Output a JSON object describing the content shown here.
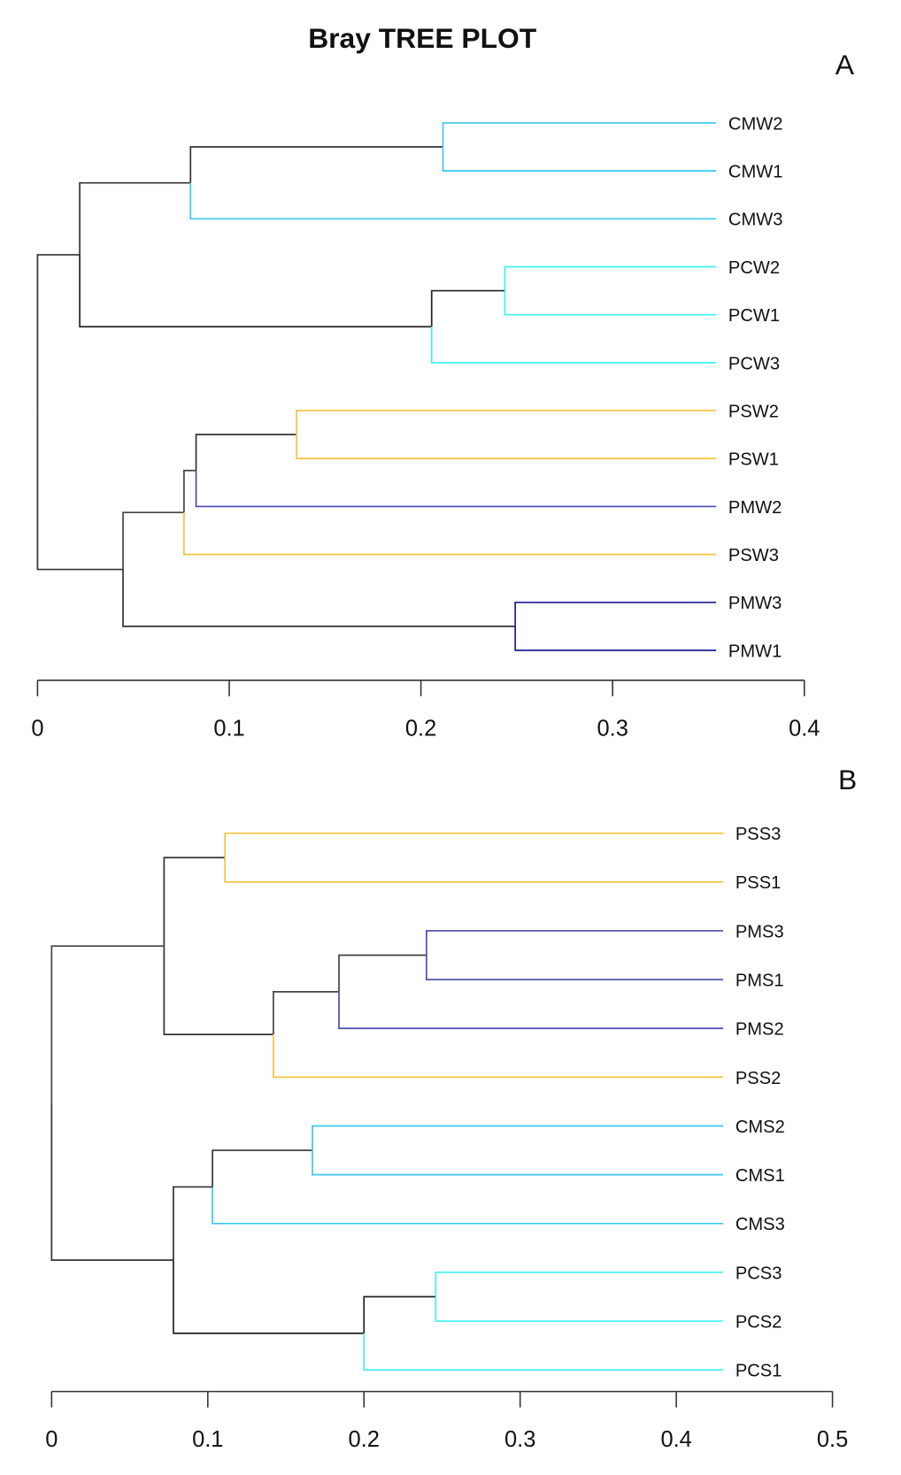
{
  "chart_data": [
    {
      "type": "dendrogram",
      "title": "Bray TREE PLOT",
      "panel": "A",
      "xlim": [
        0,
        0.4
      ],
      "x_ticks": [
        "0",
        "0.1",
        "0.2",
        "0.3",
        "0.4"
      ],
      "x_tick_values": [
        0,
        0.1,
        0.2,
        0.3,
        0.4
      ],
      "leaf_end": 0.354,
      "grid": false,
      "tree": {
        "height": 0,
        "children": [
          {
            "height": 0.022,
            "edge_color": "#333333",
            "children": [
              {
                "height": 0.0798,
                "edge_color": "#333333",
                "children": [
                  {
                    "height": 0.2115,
                    "edge_color": "#333333",
                    "children": [
                      {
                        "label": "CMW2",
                        "edge_color": "#3cc6f2"
                      },
                      {
                        "label": "CMW1",
                        "edge_color": "#3cc6f2"
                      }
                    ]
                  },
                  {
                    "label": "CMW3",
                    "edge_color": "#3cc6f2"
                  }
                ]
              },
              {
                "height": 0.2056,
                "edge_color": "#222222",
                "children": [
                  {
                    "height": 0.2438,
                    "edge_color": "#222222",
                    "children": [
                      {
                        "label": "PCW2",
                        "edge_color": "#3ff2f2"
                      },
                      {
                        "label": "PCW1",
                        "edge_color": "#3ff2f2"
                      }
                    ]
                  },
                  {
                    "label": "PCW3",
                    "edge_color": "#3ff2f2"
                  }
                ]
              }
            ]
          },
          {
            "height": 0.0446,
            "edge_color": "#333333",
            "children": [
              {
                "height": 0.0764,
                "edge_color": "#444444",
                "children": [
                  {
                    "height": 0.0827,
                    "edge_color": "#444444",
                    "children": [
                      {
                        "height": 0.1351,
                        "edge_color": "#333333",
                        "children": [
                          {
                            "label": "PSW2",
                            "edge_color": "#f7c23e"
                          },
                          {
                            "label": "PSW1",
                            "edge_color": "#f7c23e"
                          }
                        ]
                      },
                      {
                        "label": "PMW2",
                        "edge_color": "#4a4ab4"
                      }
                    ]
                  },
                  {
                    "label": "PSW3",
                    "edge_color": "#f7c23e"
                  }
                ]
              },
              {
                "height": 0.2492,
                "edge_color": "#333333",
                "children": [
                  {
                    "label": "PMW3",
                    "edge_color": "#1c1c96"
                  },
                  {
                    "label": "PMW1",
                    "edge_color": "#1c1c96"
                  }
                ]
              }
            ]
          }
        ]
      }
    },
    {
      "type": "dendrogram",
      "panel": "B",
      "xlim": [
        0,
        0.5
      ],
      "x_ticks": [
        "0",
        "0.1",
        "0.2",
        "0.3",
        "0.4",
        "0.5"
      ],
      "x_tick_values": [
        0,
        0.1,
        0.2,
        0.3,
        0.4,
        0.5
      ],
      "leaf_end": 0.43,
      "grid": false,
      "tree": {
        "height": 0,
        "children": [
          {
            "height": 0.072,
            "edge_color": "#444444",
            "children": [
              {
                "height": 0.111,
                "edge_color": "#333333",
                "children": [
                  {
                    "label": "PSS3",
                    "edge_color": "#f7c23e"
                  },
                  {
                    "label": "PSS1",
                    "edge_color": "#f7c23e"
                  }
                ]
              },
              {
                "height": 0.142,
                "edge_color": "#333333",
                "children": [
                  {
                    "height": 0.184,
                    "edge_color": "#444444",
                    "children": [
                      {
                        "height": 0.24,
                        "edge_color": "#444444",
                        "children": [
                          {
                            "label": "PMS3",
                            "edge_color": "#4a4ab4"
                          },
                          {
                            "label": "PMS1",
                            "edge_color": "#4a4ab4"
                          }
                        ]
                      },
                      {
                        "label": "PMS2",
                        "edge_color": "#4a4ab4"
                      }
                    ]
                  },
                  {
                    "label": "PSS2",
                    "edge_color": "#f7c23e"
                  }
                ]
              }
            ]
          },
          {
            "height": 0.078,
            "edge_color": "#333333",
            "children": [
              {
                "height": 0.103,
                "edge_color": "#333333",
                "children": [
                  {
                    "height": 0.167,
                    "edge_color": "#333333",
                    "children": [
                      {
                        "label": "CMS2",
                        "edge_color": "#3cc6f2"
                      },
                      {
                        "label": "CMS1",
                        "edge_color": "#3cc6f2"
                      }
                    ]
                  },
                  {
                    "label": "CMS3",
                    "edge_color": "#3cc6f2"
                  }
                ]
              },
              {
                "height": 0.2,
                "edge_color": "#222222",
                "children": [
                  {
                    "height": 0.246,
                    "edge_color": "#222222",
                    "children": [
                      {
                        "label": "PCS3",
                        "edge_color": "#3ff2f2"
                      },
                      {
                        "label": "PCS2",
                        "edge_color": "#3ff2f2"
                      }
                    ]
                  },
                  {
                    "label": "PCS1",
                    "edge_color": "#3ff2f2"
                  }
                ]
              }
            ]
          }
        ]
      }
    }
  ]
}
